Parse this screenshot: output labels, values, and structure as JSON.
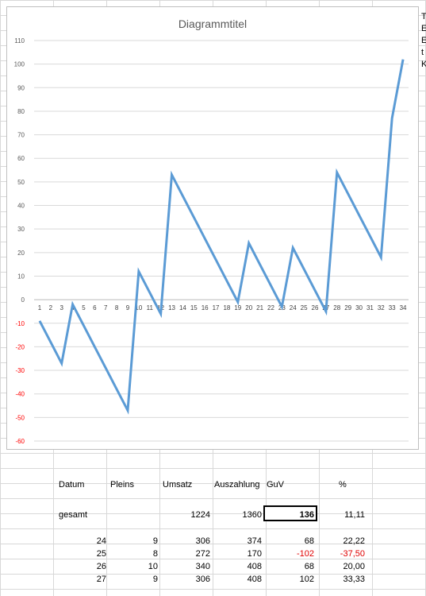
{
  "sheet": {
    "right_truncated_letters": [
      "T",
      "E",
      "E",
      "t",
      "K"
    ]
  },
  "chart_data": {
    "type": "line",
    "title": "Diagrammtitel",
    "x": [
      1,
      2,
      3,
      4,
      5,
      6,
      7,
      8,
      9,
      10,
      11,
      12,
      13,
      14,
      15,
      16,
      17,
      18,
      19,
      20,
      21,
      22,
      23,
      24,
      25,
      26,
      27,
      28,
      29,
      30,
      31,
      32,
      33,
      34
    ],
    "series": [
      {
        "values": [
          -9,
          -18,
          -27,
          -2,
          -11,
          -20,
          -29,
          -38,
          -47,
          12,
          3,
          -6,
          53,
          44,
          35,
          26,
          17,
          8,
          -1,
          24,
          15,
          6,
          -3,
          22,
          13,
          4,
          -5,
          54,
          45,
          36,
          27,
          18,
          77,
          102
        ],
        "color": "#5b9bd5"
      }
    ],
    "ylim": [
      -60,
      110
    ],
    "yticks": [
      -60,
      -50,
      -40,
      -30,
      -20,
      -10,
      0,
      10,
      20,
      30,
      40,
      50,
      60,
      70,
      80,
      90,
      100,
      110
    ],
    "negative_tick_color": "#ff0000",
    "grid": true,
    "legend": "none"
  },
  "table": {
    "headers": [
      "Datum",
      "Pleins",
      "Umsatz",
      "Auszahlung",
      "GuV",
      "%"
    ],
    "summary": {
      "label": "gesamt",
      "umsatz": "1224",
      "auszahlung": "1360",
      "guv": "136",
      "pct": "11,11"
    },
    "rows": [
      {
        "datum": "24",
        "pleins": "9",
        "umsatz": "306",
        "auszahlung": "374",
        "guv": "68",
        "pct": "22,22"
      },
      {
        "datum": "25",
        "pleins": "8",
        "umsatz": "272",
        "auszahlung": "170",
        "guv": "-102",
        "pct": "-37,50"
      },
      {
        "datum": "26",
        "pleins": "10",
        "umsatz": "340",
        "auszahlung": "408",
        "guv": "68",
        "pct": "20,00"
      },
      {
        "datum": "27",
        "pleins": "9",
        "umsatz": "306",
        "auszahlung": "408",
        "guv": "102",
        "pct": "33,33"
      }
    ],
    "negative_color": "#e00000"
  }
}
